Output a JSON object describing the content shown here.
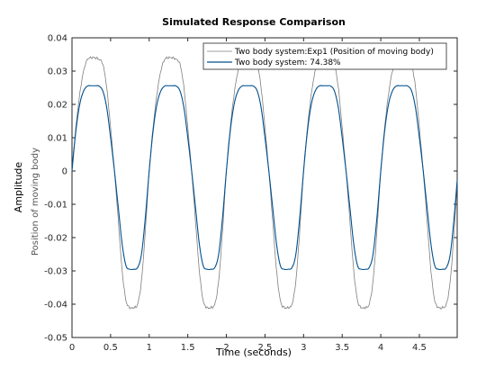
{
  "chart_data": {
    "type": "line",
    "title": "Simulated Response Comparison",
    "xlabel": "Time (seconds)",
    "ylabel": "Amplitude",
    "ysublabel": "Position of moving body",
    "xlim": [
      0,
      4.99
    ],
    "ylim": [
      -0.05,
      0.04
    ],
    "xticks": [
      0,
      0.5,
      1,
      1.5,
      2,
      2.5,
      3,
      3.5,
      4,
      4.5
    ],
    "xtick_labels": [
      "0",
      "0.5",
      "1",
      "1.5",
      "2",
      "2.5",
      "3",
      "3.5",
      "4",
      "4.5"
    ],
    "yticks": [
      -0.05,
      -0.04,
      -0.03,
      -0.02,
      -0.01,
      0,
      0.01,
      0.02,
      0.03,
      0.04
    ],
    "ytick_labels": [
      "-0.05",
      "-0.04",
      "-0.03",
      "-0.02",
      "-0.01",
      "0",
      "0.01",
      "0.02",
      "0.03",
      "0.04"
    ],
    "grid": false,
    "legend_position": "top-right",
    "period": 1.0,
    "series": [
      {
        "name": "Two body system:Exp1 (Position of moving body)",
        "color": "#7f7f7f",
        "x": [
          0,
          0.05,
          0.1,
          0.15,
          0.2,
          0.25,
          0.3,
          0.35,
          0.4,
          0.45,
          0.5,
          0.55,
          0.6,
          0.65,
          0.7,
          0.75,
          0.8,
          0.85,
          0.9,
          0.95,
          1.0
        ],
        "y": [
          0,
          0.013,
          0.023,
          0.03,
          0.0335,
          0.034,
          0.034,
          0.0335,
          0.032,
          0.025,
          0.013,
          0.0,
          -0.015,
          -0.03,
          -0.039,
          -0.041,
          -0.041,
          -0.04,
          -0.033,
          -0.018,
          0
        ]
      },
      {
        "name": "Two body system: 74.38%",
        "color": "#00508f",
        "x": [
          0,
          0.05,
          0.1,
          0.15,
          0.2,
          0.25,
          0.3,
          0.35,
          0.4,
          0.45,
          0.5,
          0.55,
          0.6,
          0.65,
          0.7,
          0.75,
          0.8,
          0.85,
          0.9,
          0.95,
          1.0
        ],
        "y": [
          0,
          0.012,
          0.02,
          0.024,
          0.0255,
          0.0256,
          0.0256,
          0.0255,
          0.024,
          0.019,
          0.01,
          0.0,
          -0.011,
          -0.022,
          -0.0285,
          -0.0295,
          -0.0295,
          -0.029,
          -0.025,
          -0.014,
          0
        ]
      }
    ]
  }
}
